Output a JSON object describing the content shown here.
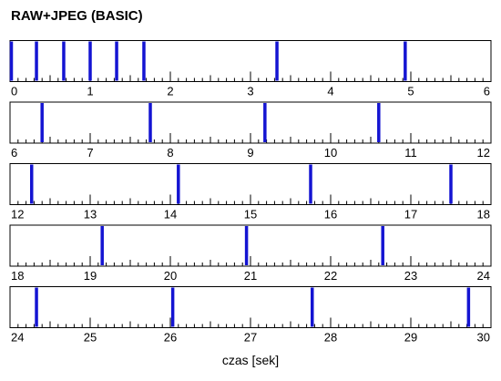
{
  "chart_data": {
    "type": "timeline",
    "title": "RAW+JPEG (BASIC)",
    "xlabel": "czas [sek]",
    "x_unit": "s",
    "xlim": [
      0,
      30
    ],
    "panel_span": 6,
    "rows": [
      {
        "range": [
          0,
          6
        ],
        "tick_labels": [
          "0",
          "1",
          "2",
          "3",
          "4",
          "5",
          "6"
        ]
      },
      {
        "range": [
          6,
          12
        ],
        "tick_labels": [
          "6",
          "7",
          "8",
          "9",
          "10",
          "11",
          "12"
        ]
      },
      {
        "range": [
          12,
          18
        ],
        "tick_labels": [
          "12",
          "13",
          "14",
          "15",
          "16",
          "17",
          "18"
        ]
      },
      {
        "range": [
          18,
          24
        ],
        "tick_labels": [
          "18",
          "19",
          "20",
          "21",
          "22",
          "23",
          "24"
        ]
      },
      {
        "range": [
          24,
          30
        ],
        "tick_labels": [
          "24",
          "25",
          "26",
          "27",
          "28",
          "29",
          "30"
        ]
      }
    ],
    "minor_tick_step": 0.1,
    "event_color": "#1414d2",
    "events": [
      0.0,
      0.33,
      0.67,
      1.0,
      1.33,
      1.67,
      3.33,
      4.93,
      6.4,
      7.75,
      9.18,
      10.6,
      12.27,
      14.1,
      15.75,
      17.5,
      19.15,
      20.95,
      22.65,
      24.33,
      26.03,
      27.77,
      29.72
    ]
  }
}
